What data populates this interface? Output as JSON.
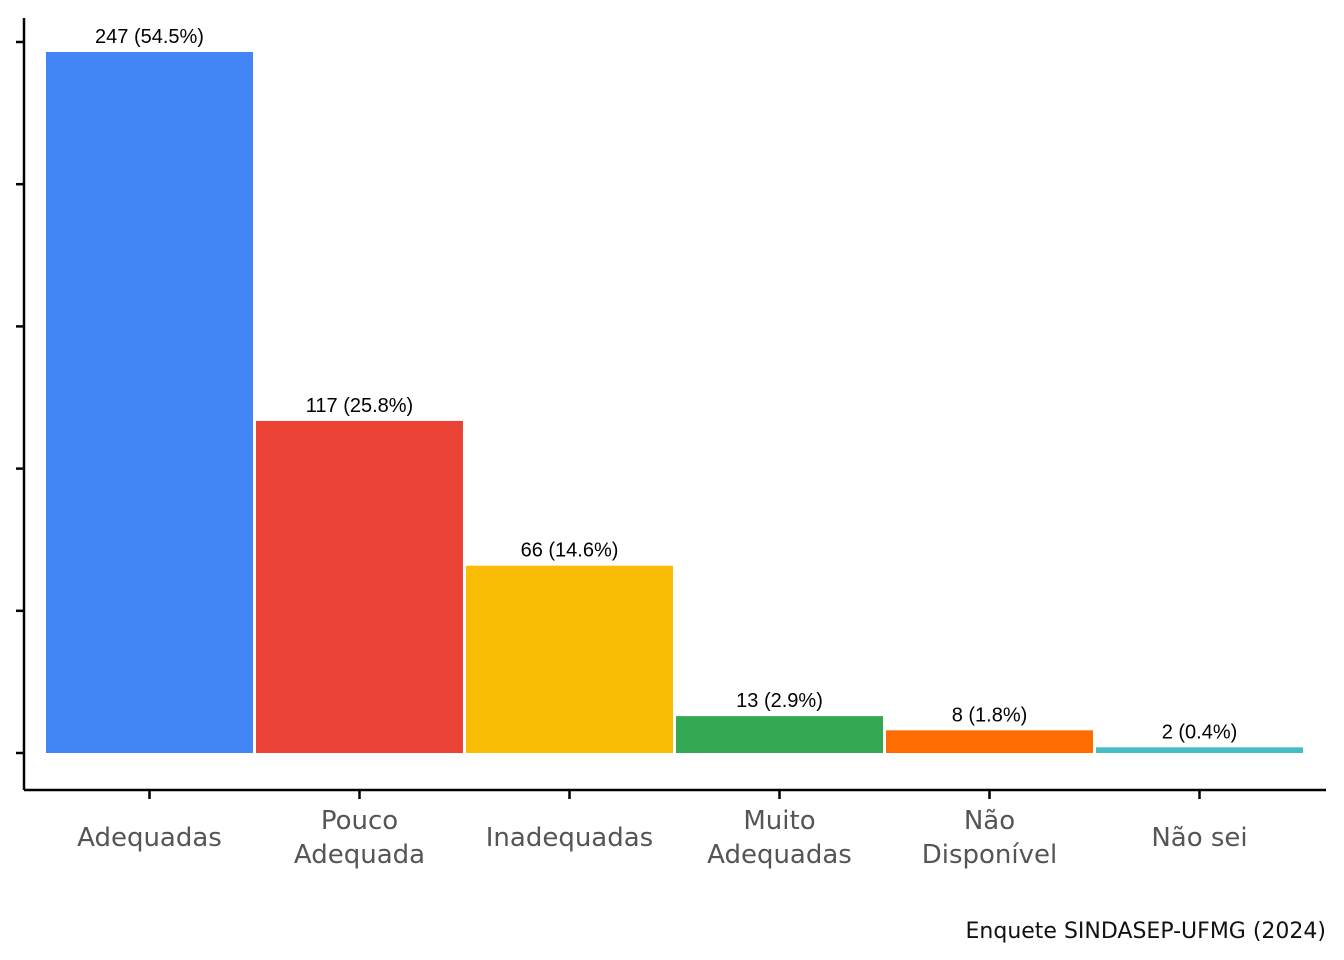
{
  "chart_data": {
    "type": "bar",
    "categories": [
      [
        "Adequadas"
      ],
      [
        "Pouco",
        "Adequada"
      ],
      [
        "Inadequadas"
      ],
      [
        "Muito",
        "Adequadas"
      ],
      [
        "Não",
        "Disponível"
      ],
      [
        "Não sei"
      ]
    ],
    "values": [
      247,
      117,
      66,
      13,
      8,
      2
    ],
    "data_labels": [
      "247 (54.5%)",
      "117 (25.8%)",
      "66 (14.6%)",
      "13 (2.9%)",
      "8 (1.8%)",
      "2 (0.4%)"
    ],
    "colors": [
      "#4285F4",
      "#EA4335",
      "#FBBC05",
      "#34A853",
      "#FF6D01",
      "#46BDC6"
    ],
    "ylim": [
      0,
      247
    ],
    "y_tick_values": [
      0,
      50,
      100,
      150,
      200,
      250
    ],
    "y_tick_labels_shown": false,
    "grid": false,
    "xlabel": "",
    "ylabel": "",
    "title": ""
  },
  "caption": "Enquete SINDASEP-UFMG (2024)"
}
